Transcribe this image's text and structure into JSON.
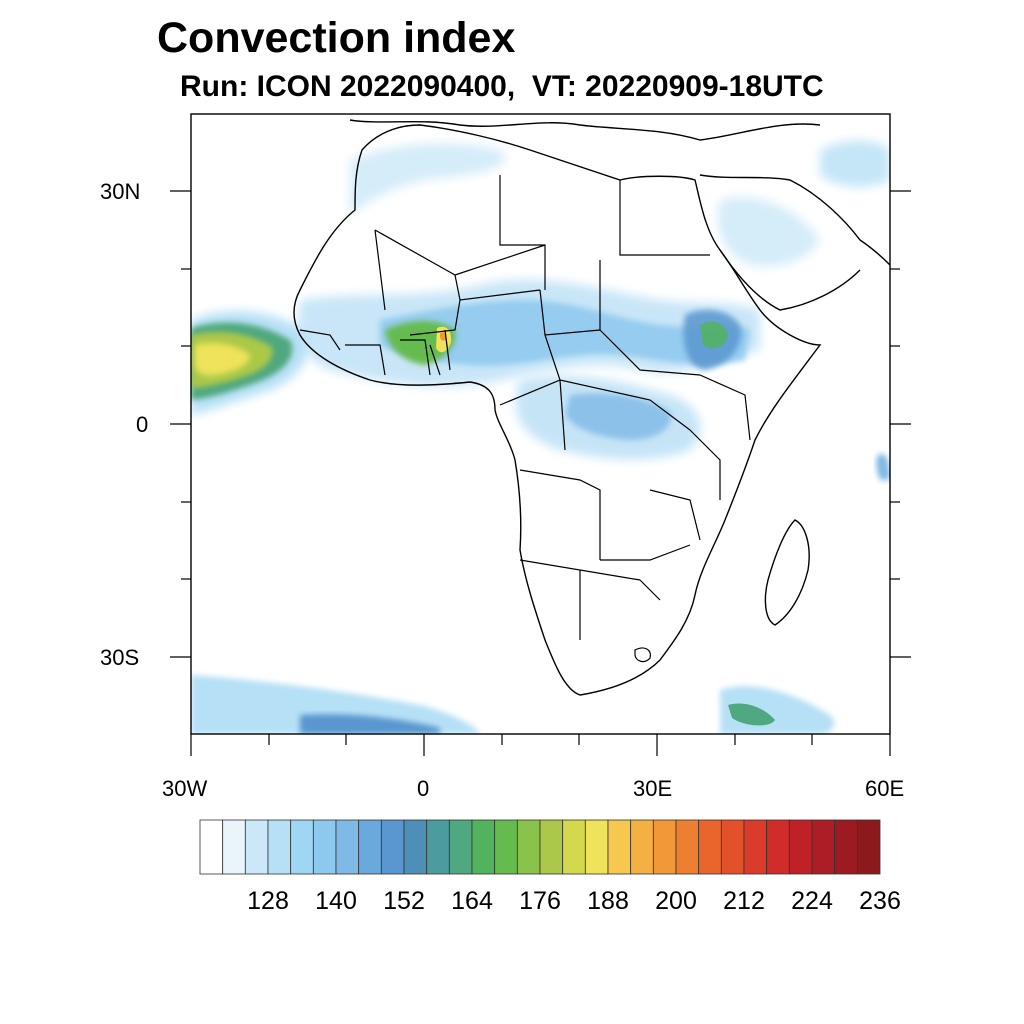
{
  "title": "Convection index",
  "subtitle": "Run: ICON 2022090400,  VT: 20220909-18UTC",
  "map": {
    "lon_range": [
      -30,
      60
    ],
    "lat_range": [
      -40,
      40
    ],
    "x_tick_labels": [
      "30W",
      "0",
      "30E",
      "60E"
    ],
    "y_tick_labels": [
      "30N",
      "0",
      "30S"
    ],
    "features": [
      "ocean",
      "land",
      "country-borders",
      "coastlines",
      "convection-index-shading"
    ]
  },
  "colorbar": {
    "tick_labels": [
      "128",
      "140",
      "152",
      "164",
      "176",
      "188",
      "200",
      "212",
      "224",
      "236"
    ],
    "colors": [
      "#ffffff",
      "#e9f4fb",
      "#cbe8f8",
      "#b6e0f6",
      "#9ed6f3",
      "#8dc8ee",
      "#7fb9e6",
      "#6aa9dd",
      "#5a96cf",
      "#4e8fb8",
      "#4b9c9e",
      "#4fa87f",
      "#52b35f",
      "#66bb4f",
      "#8ac34b",
      "#acc84a",
      "#d4d84d",
      "#eee35a",
      "#f6c84f",
      "#f4b043",
      "#f29838",
      "#ee7e30",
      "#e9652c",
      "#e2512a",
      "#db3b2b",
      "#cf2c2a",
      "#be2228",
      "#ad1d25",
      "#9e1a22",
      "#8c1a1d"
    ]
  }
}
